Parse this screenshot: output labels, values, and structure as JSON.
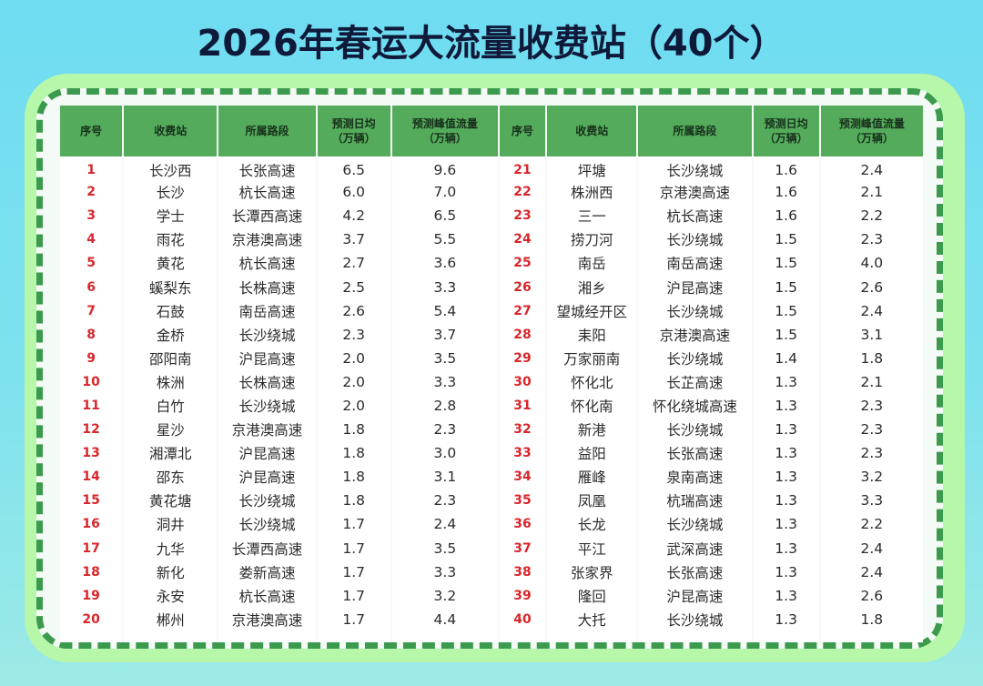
{
  "title": "2026年春运大流量收费站（40个）",
  "colors": {
    "background": "#6fdcf1",
    "panel_outer": "#b6f7aa",
    "dashed_border": "#3b9a4d",
    "header_bg": "#55ab5c",
    "index_text": "#d8262b",
    "title_text": "#0f1a3a"
  },
  "table": {
    "headers": {
      "index": "序号",
      "station": "收费站",
      "road": "所属路段",
      "daily_avg_line1": "预测日均",
      "daily_avg_line2": "（万辆）",
      "peak_line1": "预测峰值流量",
      "peak_line2": "（万辆）"
    },
    "unit": "万辆",
    "left_rows": [
      {
        "index": "1",
        "station": "长沙西",
        "road": "长张高速",
        "daily_avg": "6.5",
        "peak": "9.6"
      },
      {
        "index": "2",
        "station": "长沙",
        "road": "杭长高速",
        "daily_avg": "6.0",
        "peak": "7.0"
      },
      {
        "index": "3",
        "station": "学士",
        "road": "长潭西高速",
        "daily_avg": "4.2",
        "peak": "6.5"
      },
      {
        "index": "4",
        "station": "雨花",
        "road": "京港澳高速",
        "daily_avg": "3.7",
        "peak": "5.5"
      },
      {
        "index": "5",
        "station": "黄花",
        "road": "杭长高速",
        "daily_avg": "2.7",
        "peak": "3.6"
      },
      {
        "index": "6",
        "station": "螇梨东",
        "road": "长株高速",
        "daily_avg": "2.5",
        "peak": "3.3"
      },
      {
        "index": "7",
        "station": "石鼓",
        "road": "南岳高速",
        "daily_avg": "2.6",
        "peak": "5.4"
      },
      {
        "index": "8",
        "station": "金桥",
        "road": "长沙绕城",
        "daily_avg": "2.3",
        "peak": "3.7"
      },
      {
        "index": "9",
        "station": "邵阳南",
        "road": "沪昆高速",
        "daily_avg": "2.0",
        "peak": "3.5"
      },
      {
        "index": "10",
        "station": "株洲",
        "road": "长株高速",
        "daily_avg": "2.0",
        "peak": "3.3"
      },
      {
        "index": "11",
        "station": "白竹",
        "road": "长沙绕城",
        "daily_avg": "2.0",
        "peak": "2.8"
      },
      {
        "index": "12",
        "station": "星沙",
        "road": "京港澳高速",
        "daily_avg": "1.8",
        "peak": "2.3"
      },
      {
        "index": "13",
        "station": "湘潭北",
        "road": "沪昆高速",
        "daily_avg": "1.8",
        "peak": "3.0"
      },
      {
        "index": "14",
        "station": "邵东",
        "road": "沪昆高速",
        "daily_avg": "1.8",
        "peak": "3.1"
      },
      {
        "index": "15",
        "station": "黄花塘",
        "road": "长沙绕城",
        "daily_avg": "1.8",
        "peak": "2.3"
      },
      {
        "index": "16",
        "station": "洞井",
        "road": "长沙绕城",
        "daily_avg": "1.7",
        "peak": "2.4"
      },
      {
        "index": "17",
        "station": "九华",
        "road": "长潭西高速",
        "daily_avg": "1.7",
        "peak": "3.5"
      },
      {
        "index": "18",
        "station": "新化",
        "road": "娄新高速",
        "daily_avg": "1.7",
        "peak": "3.3"
      },
      {
        "index": "19",
        "station": "永安",
        "road": "杭长高速",
        "daily_avg": "1.7",
        "peak": "3.2"
      },
      {
        "index": "20",
        "station": "郴州",
        "road": "京港澳高速",
        "daily_avg": "1.7",
        "peak": "4.4"
      }
    ],
    "right_rows": [
      {
        "index": "21",
        "station": "坪塘",
        "road": "长沙绕城",
        "daily_avg": "1.6",
        "peak": "2.4"
      },
      {
        "index": "22",
        "station": "株洲西",
        "road": "京港澳高速",
        "daily_avg": "1.6",
        "peak": "2.1"
      },
      {
        "index": "23",
        "station": "三一",
        "road": "杭长高速",
        "daily_avg": "1.6",
        "peak": "2.2"
      },
      {
        "index": "24",
        "station": "捞刀河",
        "road": "长沙绕城",
        "daily_avg": "1.5",
        "peak": "2.3"
      },
      {
        "index": "25",
        "station": "南岳",
        "road": "南岳高速",
        "daily_avg": "1.5",
        "peak": "4.0"
      },
      {
        "index": "26",
        "station": "湘乡",
        "road": "沪昆高速",
        "daily_avg": "1.5",
        "peak": "2.6"
      },
      {
        "index": "27",
        "station": "望城经开区",
        "road": "长沙绕城",
        "daily_avg": "1.5",
        "peak": "2.4"
      },
      {
        "index": "28",
        "station": "耒阳",
        "road": "京港澳高速",
        "daily_avg": "1.5",
        "peak": "3.1"
      },
      {
        "index": "29",
        "station": "万家丽南",
        "road": "长沙绕城",
        "daily_avg": "1.4",
        "peak": "1.8"
      },
      {
        "index": "30",
        "station": "怀化北",
        "road": "长芷高速",
        "daily_avg": "1.3",
        "peak": "2.1"
      },
      {
        "index": "31",
        "station": "怀化南",
        "road": "怀化绕城高速",
        "daily_avg": "1.3",
        "peak": "2.3"
      },
      {
        "index": "32",
        "station": "新港",
        "road": "长沙绕城",
        "daily_avg": "1.3",
        "peak": "2.3"
      },
      {
        "index": "33",
        "station": "益阳",
        "road": "长张高速",
        "daily_avg": "1.3",
        "peak": "2.3"
      },
      {
        "index": "34",
        "station": "雁峰",
        "road": "泉南高速",
        "daily_avg": "1.3",
        "peak": "3.2"
      },
      {
        "index": "35",
        "station": "凤凰",
        "road": "杭瑞高速",
        "daily_avg": "1.3",
        "peak": "3.3"
      },
      {
        "index": "36",
        "station": "长龙",
        "road": "长沙绕城",
        "daily_avg": "1.3",
        "peak": "2.2"
      },
      {
        "index": "37",
        "station": "平江",
        "road": "武深高速",
        "daily_avg": "1.3",
        "peak": "2.4"
      },
      {
        "index": "38",
        "station": "张家界",
        "road": "长张高速",
        "daily_avg": "1.3",
        "peak": "2.4"
      },
      {
        "index": "39",
        "station": "隆回",
        "road": "沪昆高速",
        "daily_avg": "1.3",
        "peak": "2.6"
      },
      {
        "index": "40",
        "station": "大托",
        "road": "长沙绕城",
        "daily_avg": "1.3",
        "peak": "1.8"
      }
    ]
  }
}
